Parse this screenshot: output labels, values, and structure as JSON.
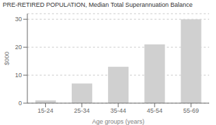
{
  "chart_data": {
    "type": "bar",
    "title": "PRE-RETIRED POPULATION, Median Total Superannuation Balance",
    "categories": [
      "15-24",
      "25-34",
      "35-44",
      "45-54",
      "55-69"
    ],
    "values": [
      1,
      7,
      13,
      21,
      30
    ],
    "color": "#d0d0d0",
    "xlabel": "Age groups (years)",
    "ylabel": "$000",
    "ylim": [
      0,
      32
    ],
    "yticks": [
      0,
      10,
      20,
      30
    ],
    "grid": true
  }
}
